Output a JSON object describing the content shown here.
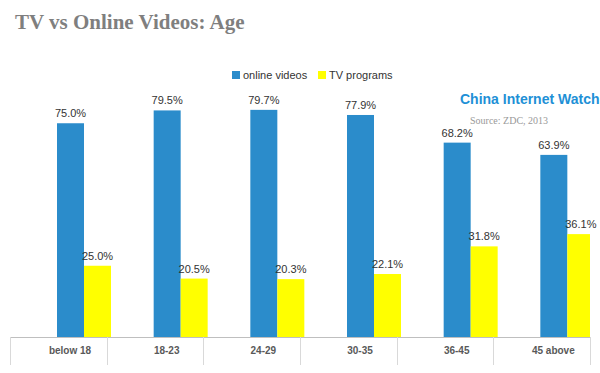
{
  "chart_data": {
    "type": "bar",
    "title": "TV vs Online Videos: Age",
    "annotations": [
      "China Internet Watch",
      "Source: ZDC, 2013"
    ],
    "categories": [
      "below 18",
      "18-23",
      "24-29",
      "30-35",
      "36-45",
      "45 above"
    ],
    "series": [
      {
        "name": "online videos",
        "color": "#2b8ccb",
        "values": [
          75.0,
          79.5,
          79.7,
          77.9,
          68.2,
          63.9
        ],
        "value_labels": [
          "75.0%",
          "79.5%",
          "79.7%",
          "77.9%",
          "68.2%",
          "63.9%"
        ]
      },
      {
        "name": "TV programs",
        "color": "#ffff00",
        "values": [
          25.0,
          20.5,
          20.3,
          22.1,
          31.8,
          36.1
        ],
        "value_labels": [
          "25.0%",
          "20.5%",
          "20.3%",
          "22.1%",
          "31.8%",
          "36.1%"
        ]
      }
    ],
    "ylim": [
      0,
      100
    ],
    "grid": false,
    "legend": "top",
    "data_labels": true,
    "tick_labels": "x"
  }
}
